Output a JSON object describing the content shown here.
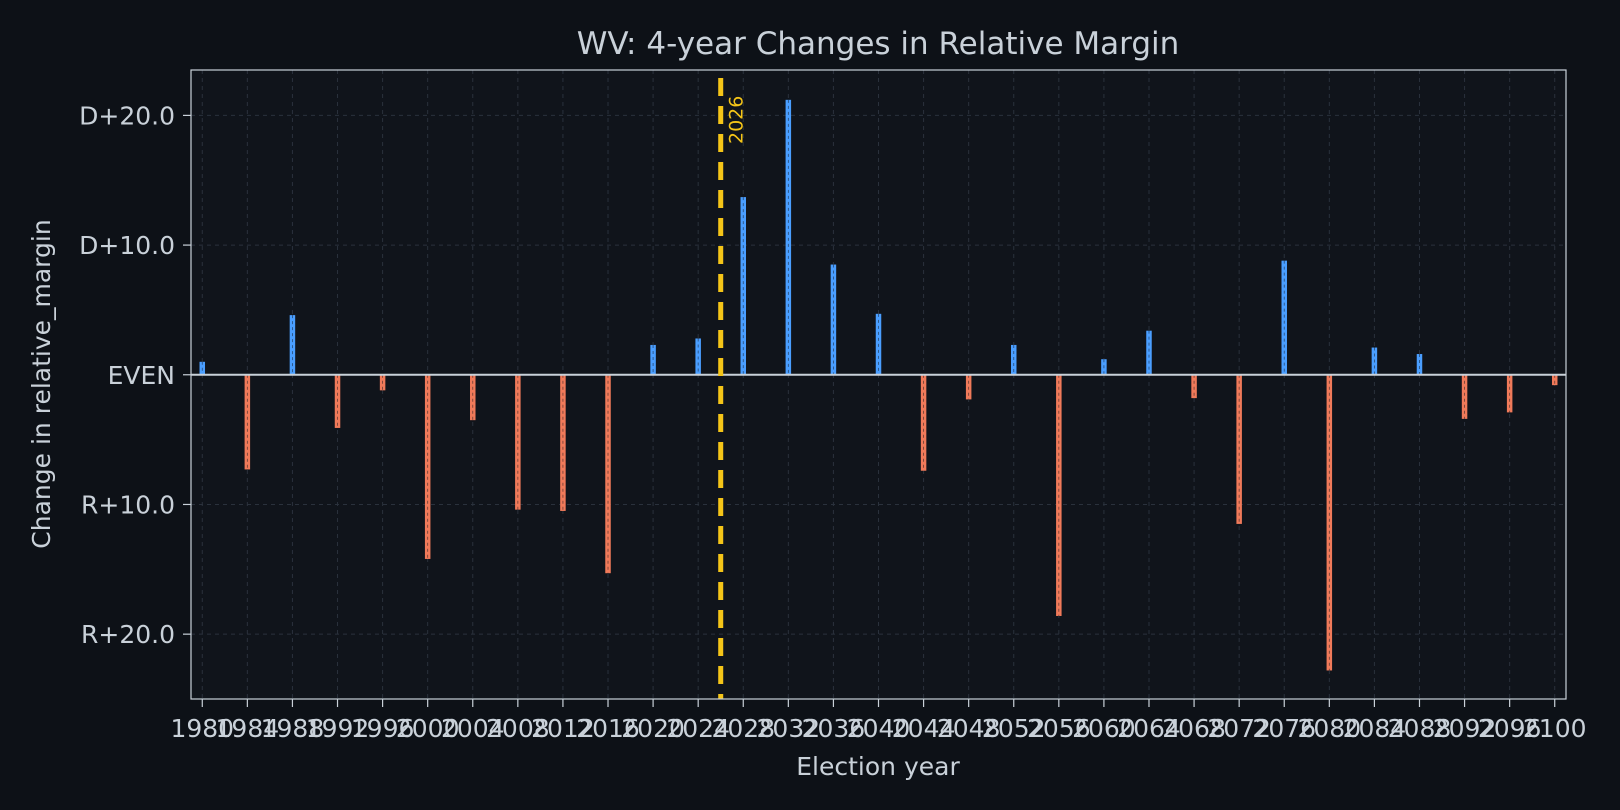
{
  "chart_data": {
    "type": "bar",
    "title": "WV: 4-year Changes in Relative Margin",
    "xlabel": "Election year",
    "ylabel": "Change in relative_margin",
    "ylim": [
      -25,
      23.5
    ],
    "xlim": [
      1979,
      2101
    ],
    "y_ticks": [
      {
        "value": 20,
        "label": "D+20.0"
      },
      {
        "value": 10,
        "label": "D+10.0"
      },
      {
        "value": 0,
        "label": "EVEN"
      },
      {
        "value": -10,
        "label": "R+10.0"
      },
      {
        "value": -20,
        "label": "R+20.0"
      }
    ],
    "x_ticks": [
      1980,
      1984,
      1988,
      1992,
      1996,
      2000,
      2004,
      2008,
      2012,
      2016,
      2020,
      2024,
      2028,
      2032,
      2036,
      2040,
      2044,
      2048,
      2052,
      2056,
      2060,
      2064,
      2068,
      2072,
      2076,
      2080,
      2084,
      2088,
      2092,
      2096,
      2100
    ],
    "x": [
      1980,
      1984,
      1988,
      1992,
      1996,
      2000,
      2004,
      2008,
      2012,
      2016,
      2020,
      2024,
      2028,
      2032,
      2036,
      2040,
      2044,
      2048,
      2052,
      2056,
      2060,
      2064,
      2068,
      2072,
      2076,
      2080,
      2084,
      2088,
      2092,
      2096,
      2100
    ],
    "values": [
      1.0,
      -7.3,
      4.6,
      -4.1,
      -1.2,
      -14.2,
      -3.5,
      -10.4,
      -10.5,
      -15.3,
      2.3,
      2.8,
      13.7,
      21.2,
      8.5,
      4.7,
      -7.4,
      -1.9,
      2.3,
      -18.6,
      1.2,
      3.4,
      -1.8,
      -11.5,
      8.8,
      -22.8,
      2.1,
      1.6,
      -3.4,
      -2.9,
      -0.8
    ],
    "grid": true,
    "colors": {
      "positive": "#4a9eff",
      "negative": "#f07a5a",
      "marker": "#f5c518",
      "background": "#0d1117",
      "text": "#c9d1d9",
      "zero_line": "#c9d1d9"
    },
    "annotations": [
      {
        "type": "vline",
        "x": 2026,
        "label": "2026"
      }
    ]
  }
}
